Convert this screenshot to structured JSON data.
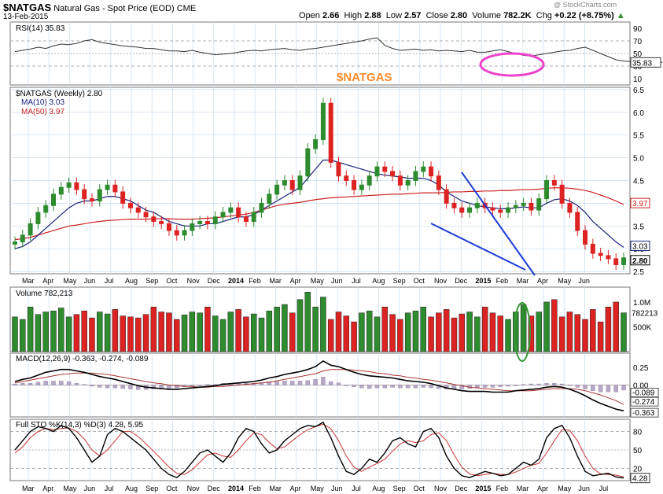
{
  "header": {
    "symbol": "$NATGAS",
    "name": "Natural Gas - Spot Price (EOD)",
    "exchange": "CME",
    "date": "13-Feb-2015",
    "open_label": "Open",
    "open": "2.66",
    "high_label": "High",
    "high": "2.88",
    "low_label": "Low",
    "low": "2.57",
    "close_label": "Close",
    "close": "2.80",
    "volume_label": "Volume",
    "volume": "782.2K",
    "chg_label": "Chg",
    "chg": "+0.22 (+8.75%)",
    "arrow": "▲",
    "watermark": "@ StockCharts.com"
  },
  "colors": {
    "up": "#2e8b2e",
    "down": "#dd2222",
    "ma10": "#1a237e",
    "ma50": "#cc2222",
    "rsi": "#333333",
    "annotation": "#ee44cc",
    "vol_circle": "#339933",
    "overlay": "#ff8c2e",
    "macd": "#000000",
    "signal": "#aa3333",
    "hist": "#b8a8c8",
    "grid": "#c7dcef"
  },
  "overlay_text": "$NATGAS",
  "chart_data": [
    {
      "type": "line",
      "panel": "rsi",
      "label": "RSI(14) 35.83",
      "yticks": [
        90,
        70,
        50,
        30,
        10
      ],
      "ylim": [
        0,
        100
      ],
      "refs": [
        70,
        50,
        30
      ],
      "current_label": "35.83",
      "values": [
        53,
        55,
        57,
        60,
        58,
        62,
        65,
        64,
        66,
        70,
        72,
        68,
        66,
        64,
        62,
        61,
        60,
        58,
        58,
        56,
        54,
        54,
        53,
        55,
        52,
        50,
        48,
        49,
        50,
        52,
        54,
        55,
        54,
        56,
        57,
        58,
        56,
        55,
        57,
        58,
        60,
        62,
        64,
        66,
        68,
        70,
        73,
        75,
        63,
        58,
        55,
        56,
        57,
        55,
        56,
        54,
        55,
        54,
        53,
        55,
        52,
        52,
        54,
        56,
        53,
        50,
        47,
        46,
        48,
        50,
        52,
        54,
        55,
        58,
        60,
        55,
        50,
        45,
        40,
        38,
        37,
        38,
        36,
        40,
        35.8
      ]
    },
    {
      "type": "candlestick",
      "panel": "price",
      "label": "$NATGAS (Weekly) 2.80",
      "ma10_label": "MA(10) 3.03",
      "ma50_label": "MA(50) 3.97",
      "yticks": [
        6.5,
        6.0,
        5.5,
        5.0,
        4.5,
        4.0,
        3.5,
        3.0,
        2.5
      ],
      "ylim": [
        2.45,
        6.55
      ],
      "price_tags": [
        "3.97",
        "3.03",
        "2.80"
      ],
      "closes": [
        3.15,
        3.3,
        3.55,
        3.8,
        3.95,
        4.2,
        4.35,
        4.45,
        4.3,
        4.1,
        4.05,
        4.3,
        4.4,
        4.25,
        4.0,
        3.9,
        3.8,
        3.7,
        3.6,
        3.55,
        3.4,
        3.3,
        3.4,
        3.55,
        3.6,
        3.55,
        3.7,
        3.8,
        3.9,
        3.7,
        3.6,
        3.8,
        4.0,
        4.2,
        4.4,
        4.5,
        4.3,
        4.6,
        5.2,
        5.4,
        6.2,
        4.9,
        4.6,
        4.5,
        4.3,
        4.4,
        4.6,
        4.8,
        4.7,
        4.6,
        4.4,
        4.5,
        4.7,
        4.8,
        4.6,
        4.3,
        4.0,
        3.9,
        3.8,
        3.9,
        4.0,
        3.9,
        3.85,
        3.8,
        3.9,
        3.95,
        4.0,
        3.85,
        4.1,
        4.5,
        4.4,
        4.0,
        3.8,
        3.4,
        3.1,
        2.9,
        2.85,
        2.78,
        2.65,
        2.8
      ],
      "ma10": [
        3.0,
        3.05,
        3.15,
        3.3,
        3.45,
        3.6,
        3.75,
        3.9,
        4.0,
        4.05,
        4.05,
        4.1,
        4.15,
        4.15,
        4.1,
        4.05,
        3.95,
        3.85,
        3.8,
        3.7,
        3.6,
        3.55,
        3.5,
        3.5,
        3.5,
        3.55,
        3.55,
        3.6,
        3.65,
        3.7,
        3.7,
        3.75,
        3.85,
        3.95,
        4.05,
        4.15,
        4.25,
        4.35,
        4.55,
        4.75,
        4.95,
        4.95,
        4.9,
        4.85,
        4.8,
        4.75,
        4.7,
        4.65,
        4.62,
        4.6,
        4.58,
        4.55,
        4.55,
        4.55,
        4.5,
        4.4,
        4.25,
        4.15,
        4.05,
        4.0,
        3.95,
        3.92,
        3.9,
        3.88,
        3.88,
        3.9,
        3.92,
        3.9,
        3.9,
        4.0,
        4.08,
        4.1,
        4.05,
        3.95,
        3.8,
        3.6,
        3.45,
        3.3,
        3.15,
        3.03
      ],
      "ma50": [
        3.2,
        3.22,
        3.25,
        3.3,
        3.35,
        3.4,
        3.45,
        3.5,
        3.52,
        3.55,
        3.58,
        3.6,
        3.62,
        3.63,
        3.64,
        3.65,
        3.65,
        3.65,
        3.66,
        3.66,
        3.66,
        3.65,
        3.65,
        3.65,
        3.66,
        3.67,
        3.68,
        3.7,
        3.72,
        3.74,
        3.76,
        3.8,
        3.85,
        3.9,
        3.95,
        3.98,
        4.0,
        4.02,
        4.05,
        4.08,
        4.1,
        4.12,
        4.13,
        4.14,
        4.15,
        4.16,
        4.17,
        4.18,
        4.19,
        4.2,
        4.2,
        4.21,
        4.22,
        4.23,
        4.23,
        4.23,
        4.24,
        4.25,
        4.25,
        4.26,
        4.26,
        4.27,
        4.27,
        4.28,
        4.28,
        4.29,
        4.3,
        4.3,
        4.31,
        4.33,
        4.34,
        4.34,
        4.33,
        4.31,
        4.28,
        4.24,
        4.18,
        4.12,
        4.05,
        3.97
      ]
    },
    {
      "type": "bar",
      "panel": "volume",
      "label": "Volume 782,213",
      "yticks": [
        "1.0M",
        "500K"
      ],
      "current_label": "782213",
      "values_k": [
        700,
        650,
        900,
        750,
        800,
        820,
        880,
        700,
        750,
        820,
        680,
        800,
        760,
        850,
        720,
        700,
        680,
        750,
        900,
        800,
        780,
        650,
        740,
        800,
        780,
        900,
        720,
        650,
        800,
        850,
        700,
        760,
        680,
        820,
        900,
        950,
        780,
        1050,
        1200,
        900,
        1100,
        650,
        800,
        720,
        600,
        780,
        820,
        700,
        900,
        750,
        650,
        780,
        820,
        900,
        700,
        780,
        850,
        680,
        760,
        800,
        700,
        900,
        780,
        720,
        650,
        800,
        950,
        720,
        800,
        1000,
        1050,
        700,
        800,
        750,
        650,
        850,
        600,
        900,
        1000,
        782
      ]
    },
    {
      "type": "line",
      "panel": "macd",
      "label": "MACD(12,26,9) -0.363, -0.274, -0.089",
      "yticks": [
        "0.25",
        "0.00"
      ],
      "ylim": [
        -0.45,
        0.45
      ],
      "value_tags": [
        "-0.089",
        "-0.274",
        "-0.363"
      ],
      "macd": [
        0.05,
        0.08,
        0.1,
        0.14,
        0.18,
        0.2,
        0.22,
        0.22,
        0.2,
        0.18,
        0.15,
        0.12,
        0.1,
        0.08,
        0.05,
        0.02,
        -0.01,
        -0.03,
        -0.04,
        -0.05,
        -0.06,
        -0.06,
        -0.05,
        -0.04,
        -0.03,
        -0.02,
        -0.01,
        0.01,
        0.02,
        0.03,
        0.04,
        0.05,
        0.07,
        0.1,
        0.12,
        0.15,
        0.17,
        0.19,
        0.22,
        0.26,
        0.34,
        0.28,
        0.26,
        0.22,
        0.18,
        0.15,
        0.13,
        0.12,
        0.11,
        0.1,
        0.08,
        0.06,
        0.05,
        0.04,
        0.02,
        -0.01,
        -0.04,
        -0.06,
        -0.08,
        -0.09,
        -0.09,
        -0.09,
        -0.1,
        -0.1,
        -0.1,
        -0.08,
        -0.07,
        -0.06,
        -0.05,
        -0.03,
        -0.02,
        -0.03,
        -0.06,
        -0.1,
        -0.15,
        -0.21,
        -0.26,
        -0.3,
        -0.34,
        -0.363
      ],
      "signal": [
        0.03,
        0.05,
        0.07,
        0.09,
        0.11,
        0.13,
        0.15,
        0.16,
        0.17,
        0.17,
        0.17,
        0.16,
        0.15,
        0.13,
        0.11,
        0.09,
        0.07,
        0.05,
        0.03,
        0.02,
        0.0,
        -0.01,
        -0.02,
        -0.02,
        -0.03,
        -0.03,
        -0.02,
        -0.02,
        -0.01,
        0.0,
        0.01,
        0.02,
        0.03,
        0.04,
        0.06,
        0.08,
        0.1,
        0.12,
        0.14,
        0.16,
        0.2,
        0.22,
        0.22,
        0.22,
        0.21,
        0.2,
        0.19,
        0.17,
        0.16,
        0.14,
        0.13,
        0.11,
        0.1,
        0.08,
        0.07,
        0.05,
        0.03,
        0.01,
        -0.01,
        -0.03,
        -0.04,
        -0.05,
        -0.06,
        -0.07,
        -0.08,
        -0.08,
        -0.08,
        -0.08,
        -0.07,
        -0.06,
        -0.05,
        -0.05,
        -0.05,
        -0.06,
        -0.08,
        -0.11,
        -0.14,
        -0.18,
        -0.22,
        -0.274
      ]
    },
    {
      "type": "line",
      "panel": "sto",
      "label": "Full STO %K(14,3) %D(3) 4.28, 5.95",
      "yticks": [
        80,
        50,
        20
      ],
      "ylim": [
        0,
        100
      ],
      "refs": [
        80,
        50,
        20
      ],
      "current_label": "4.28",
      "k": [
        50,
        65,
        80,
        88,
        85,
        80,
        90,
        85,
        70,
        50,
        30,
        40,
        75,
        85,
        80,
        70,
        60,
        50,
        35,
        20,
        10,
        5,
        15,
        30,
        45,
        50,
        40,
        30,
        45,
        70,
        85,
        80,
        60,
        45,
        50,
        65,
        75,
        85,
        90,
        88,
        95,
        70,
        40,
        15,
        10,
        20,
        35,
        30,
        45,
        65,
        70,
        60,
        55,
        80,
        85,
        70,
        40,
        20,
        8,
        5,
        10,
        15,
        12,
        8,
        10,
        20,
        30,
        25,
        35,
        70,
        85,
        90,
        70,
        40,
        15,
        8,
        10,
        12,
        6,
        4.28
      ],
      "d": [
        45,
        55,
        70,
        80,
        85,
        83,
        85,
        86,
        80,
        68,
        50,
        40,
        50,
        65,
        80,
        80,
        72,
        60,
        48,
        35,
        22,
        12,
        10,
        18,
        30,
        42,
        45,
        40,
        38,
        50,
        65,
        78,
        75,
        62,
        52,
        55,
        65,
        75,
        83,
        88,
        92,
        85,
        65,
        40,
        22,
        15,
        22,
        28,
        35,
        48,
        60,
        65,
        62,
        65,
        75,
        78,
        65,
        42,
        22,
        11,
        8,
        10,
        12,
        10,
        10,
        14,
        20,
        25,
        28,
        45,
        65,
        83,
        82,
        65,
        40,
        20,
        11,
        10,
        9,
        5.95
      ]
    },
    {
      "type": "table",
      "panel": "date-axis",
      "top_axis": [
        "Mar",
        "Apr",
        "May",
        "Jun",
        "Jul",
        "Aug",
        "Sep",
        "Oct",
        "Nov",
        "Dec",
        "2014",
        "Feb",
        "Mar",
        "Apr",
        "May",
        "Jun",
        "Jul",
        "Aug",
        "Sep",
        "Oct",
        "Nov",
        "Dec",
        "2015",
        "Feb",
        "Mar",
        "Apr",
        "May",
        "Jun"
      ],
      "bottom_axis": [
        "Mar",
        "Apr",
        "May",
        "Jun",
        "Jul",
        "Aug",
        "Sep",
        "Oct",
        "Nov",
        "Dec",
        "2014",
        "Feb",
        "Mar",
        "Apr",
        "May",
        "Jun",
        "Jul",
        "Aug",
        "Sep",
        "Oct",
        "Nov",
        "Dec",
        "2015",
        "Feb",
        "Mar",
        "Apr",
        "May",
        "Jun",
        "Jul"
      ]
    }
  ]
}
